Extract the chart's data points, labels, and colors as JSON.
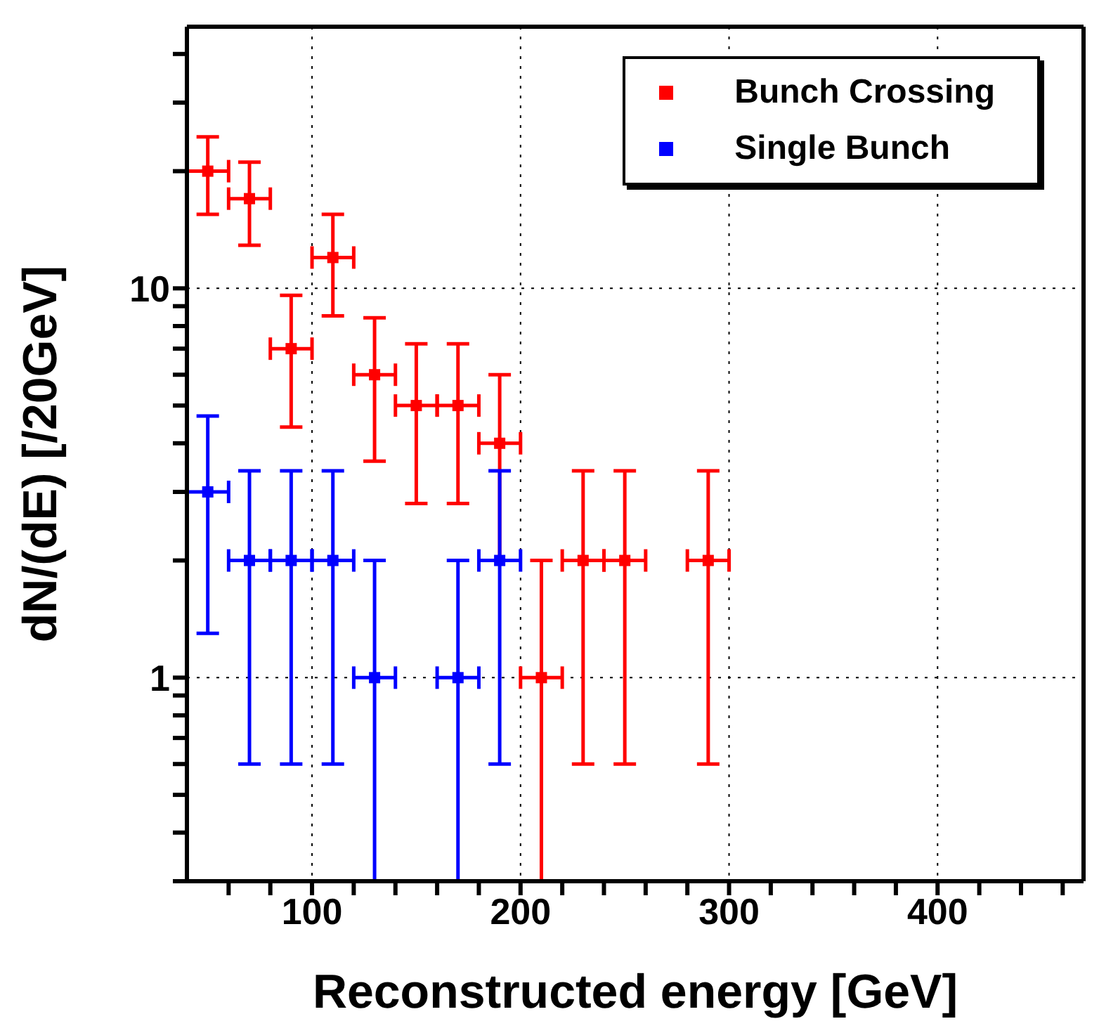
{
  "chart_data": {
    "type": "scatter",
    "xlabel": "Reconstructed energy [GeV]",
    "ylabel": "dN/(dE) [/20GeV]",
    "xlim": [
      40,
      470
    ],
    "ylim": [
      0.3,
      47
    ],
    "log": "y",
    "grid": true,
    "legend": "top right",
    "marker": "square",
    "xticks": [
      {
        "value": 60,
        "label": null
      },
      {
        "value": 80,
        "label": null
      },
      100,
      {
        "value": 120,
        "label": null
      },
      {
        "value": 140,
        "label": null
      },
      {
        "value": 160,
        "label": null
      },
      {
        "value": 180,
        "label": null
      },
      200,
      {
        "value": 220,
        "label": null
      },
      {
        "value": 240,
        "label": null
      },
      {
        "value": 260,
        "label": null
      },
      {
        "value": 280,
        "label": null
      },
      300,
      {
        "value": 320,
        "label": null
      },
      {
        "value": 340,
        "label": null
      },
      {
        "value": 360,
        "label": null
      },
      {
        "value": 380,
        "label": null
      },
      400,
      {
        "value": 420,
        "label": null
      },
      {
        "value": 440,
        "label": null
      },
      {
        "value": 460,
        "label": null
      }
    ],
    "yticks": [
      {
        "value": 0.3,
        "label": null
      },
      {
        "value": 0.4,
        "label": null
      },
      {
        "value": 0.5,
        "label": null
      },
      {
        "value": 0.6,
        "label": null
      },
      {
        "value": 0.7,
        "label": null
      },
      {
        "value": 0.8,
        "label": null
      },
      {
        "value": 0.9,
        "label": null
      },
      1,
      {
        "value": 2,
        "label": null
      },
      {
        "value": 3,
        "label": null
      },
      {
        "value": 4,
        "label": null
      },
      {
        "value": 5,
        "label": null
      },
      {
        "value": 6,
        "label": null
      },
      {
        "value": 7,
        "label": null
      },
      {
        "value": 8,
        "label": null
      },
      {
        "value": 9,
        "label": null
      },
      10,
      {
        "value": 20,
        "label": null
      },
      {
        "value": 30,
        "label": null
      },
      {
        "value": 40,
        "label": null
      }
    ],
    "series": [
      {
        "name": "Bunch Crossing",
        "color": "#ff0000",
        "x": [
          50,
          70,
          90,
          110,
          130,
          150,
          170,
          190,
          210,
          230,
          250,
          290
        ],
        "values": [
          20,
          17,
          7,
          12,
          6,
          5,
          5,
          4,
          1,
          2,
          2,
          2
        ],
        "errors": [
          4.5,
          4.1,
          2.6,
          3.5,
          2.4,
          2.2,
          2.2,
          2,
          [
            0.3,
            2
          ],
          1.4,
          1.4,
          1.4
        ],
        "xerrors": [
          10,
          10,
          10,
          10,
          10,
          10,
          10,
          10,
          10,
          10,
          10,
          10
        ]
      },
      {
        "name": "Single Bunch",
        "color": "#0000ff",
        "x": [
          50,
          70,
          90,
          110,
          130,
          170,
          190
        ],
        "values": [
          3,
          2,
          2,
          2,
          1,
          1,
          2
        ],
        "errors": [
          1.7,
          1.4,
          1.4,
          1.4,
          [
            0.3,
            2
          ],
          [
            0.3,
            2
          ],
          1.4
        ],
        "xerrors": [
          10,
          10,
          10,
          10,
          10,
          10,
          10
        ]
      }
    ]
  }
}
